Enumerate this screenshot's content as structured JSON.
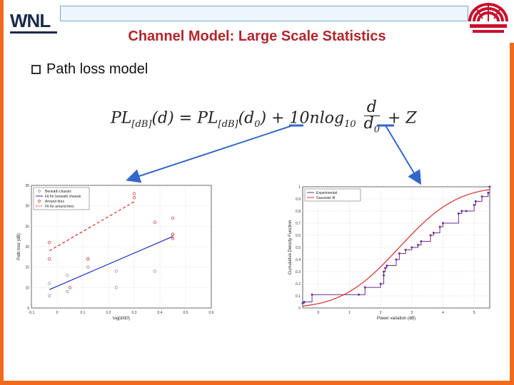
{
  "logo": {
    "text": "WNL"
  },
  "title": "Channel Model: Large Scale Statistics",
  "bullet": {
    "text": "Path loss model"
  },
  "formula": {
    "lhs": "PL",
    "lhs_sub": "[dB]",
    "arg1": "(d) = ",
    "rhs": "PL",
    "rhs_sub": "[dB]",
    "arg2": "(d",
    "arg2_sub": "0",
    "plus": ") + 10",
    "nlog": "nlog",
    "log_sub": "10",
    "frac_num": "d",
    "frac_den": "d",
    "frac_den_sub": "0",
    "tail": "+ Z"
  },
  "colors": {
    "frame": "#f26b1d",
    "title": "#b2262b",
    "arrow": "#3366cc",
    "purple": "#6b2f8f",
    "red_fit": "#d62828",
    "blue_fit": "#1f2fbf"
  },
  "chart_data": [
    {
      "type": "scatter",
      "title": "",
      "xlabel": "log(d/d0)",
      "ylabel": "Path loss (dB)",
      "xlim": [
        -0.1,
        0.6
      ],
      "ylim": [
        5,
        35
      ],
      "xticks": [
        "-0.1",
        "0",
        "0.1",
        "0.2",
        "0.3",
        "0.4",
        "0.5",
        "0.6"
      ],
      "yticks": [
        "5",
        "10",
        "15",
        "20",
        "25",
        "30",
        "35"
      ],
      "legend": [
        "Beneath chassis",
        "Fit for beneath chassis",
        "Around tires",
        "Fit for around tires"
      ],
      "legend_position": "top-left",
      "grid": true,
      "series": [
        {
          "name": "Beneath chassis",
          "style": "points",
          "color": "#8888aa",
          "x": [
            -0.03,
            -0.03,
            0.04,
            0.04,
            0.12,
            0.12,
            0.23,
            0.23,
            0.38,
            0.45,
            0.45
          ],
          "y": [
            8,
            11,
            13,
            9,
            17,
            15,
            14,
            10,
            14,
            22,
            23
          ]
        },
        {
          "name": "Fit for beneath chassis",
          "style": "line",
          "color": "#1f2fbf",
          "x": [
            -0.03,
            0.45
          ],
          "y": [
            9.5,
            22.5
          ]
        },
        {
          "name": "Around tires",
          "style": "points",
          "color": "#d62828",
          "x": [
            -0.03,
            -0.03,
            0.05,
            0.12,
            0.3,
            0.3,
            0.45,
            0.45,
            0.38,
            0.45
          ],
          "y": [
            17,
            21,
            10,
            17,
            32,
            33,
            23,
            22,
            26,
            27
          ]
        },
        {
          "name": "Fit for around tires",
          "style": "dashed",
          "color": "#d62828",
          "x": [
            -0.03,
            0.3
          ],
          "y": [
            19,
            31
          ]
        }
      ]
    },
    {
      "type": "line",
      "title": "",
      "xlabel": "Power variation (dB)",
      "ylabel": "Cumulative Density Function",
      "xlim": [
        -0.5,
        5.5
      ],
      "ylim": [
        0,
        1
      ],
      "xticks": [
        "0",
        "1",
        "2",
        "3",
        "4",
        "5"
      ],
      "yticks": [
        "0",
        "0.1",
        "0.2",
        "0.3",
        "0.4",
        "0.5",
        "0.6",
        "0.7",
        "0.8",
        "0.9",
        "1"
      ],
      "legend": [
        "Experimental",
        "Gaussian fit"
      ],
      "legend_position": "top-left",
      "grid": true,
      "series": [
        {
          "name": "Experimental",
          "style": "step",
          "color": "#6b2f8f",
          "x": [
            -0.5,
            -0.45,
            -0.2,
            1.3,
            1.5,
            2.0,
            2.1,
            2.1,
            2.15,
            2.2,
            2.5,
            2.6,
            2.8,
            3.0,
            3.2,
            3.3,
            3.6,
            3.7,
            3.9,
            4.0,
            4.5,
            4.6,
            4.75,
            5.0,
            5.05,
            5.25,
            5.45,
            5.5
          ],
          "y": [
            0.04,
            0.05,
            0.11,
            0.11,
            0.17,
            0.2,
            0.27,
            0.3,
            0.33,
            0.35,
            0.4,
            0.45,
            0.48,
            0.5,
            0.52,
            0.55,
            0.6,
            0.62,
            0.67,
            0.7,
            0.78,
            0.8,
            0.8,
            0.85,
            0.88,
            0.92,
            0.95,
            1.0
          ]
        },
        {
          "name": "Gaussian fit",
          "style": "curve",
          "color": "#d62828",
          "mean": 2.6,
          "sd": 1.45
        }
      ]
    }
  ]
}
